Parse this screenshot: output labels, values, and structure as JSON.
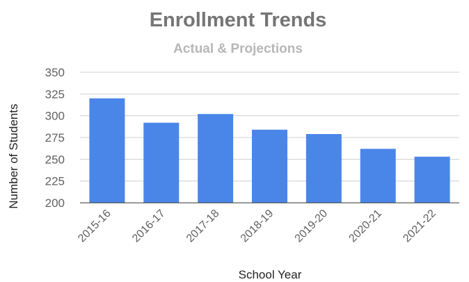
{
  "chart_data": {
    "type": "bar",
    "title": "Enrollment Trends",
    "subtitle": "Actual & Projections",
    "xlabel": "School Year",
    "ylabel": "Number of Students",
    "categories": [
      "2015-16",
      "2016-17",
      "2017-18",
      "2018-19",
      "2019-20",
      "2020-21",
      "2021-22"
    ],
    "values": [
      320,
      292,
      302,
      284,
      279,
      262,
      253
    ],
    "ylim": [
      200,
      350
    ],
    "yticks": [
      200,
      225,
      250,
      275,
      300,
      325,
      350
    ],
    "grid": true,
    "legend": "none",
    "bar_color": "#4a86e8"
  }
}
